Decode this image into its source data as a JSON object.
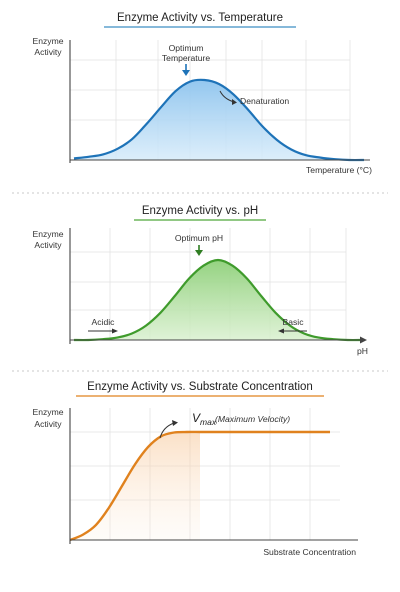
{
  "accent_colors": {
    "temperature": "#1e73b8",
    "ph": "#3f9b2c",
    "substrate": "#e0821e"
  },
  "chart_data": [
    {
      "id": "temperature",
      "type": "area",
      "title": "Enzyme Activity vs. Temperature",
      "xlabel": "Temperature (°C)",
      "ylabel_line1": "Enzyme",
      "ylabel_line2": "Activity",
      "grid": true,
      "xlim": [
        0,
        10
      ],
      "ylim": [
        0,
        1
      ],
      "x": [
        0,
        0.5,
        1,
        1.5,
        2,
        2.5,
        3,
        3.5,
        4,
        4.5,
        5,
        5.5,
        6,
        6.5,
        7,
        7.5,
        8,
        8.5,
        9,
        9.5,
        10
      ],
      "values": [
        0.02,
        0.04,
        0.07,
        0.14,
        0.26,
        0.45,
        0.66,
        0.86,
        0.98,
        1.0,
        0.95,
        0.82,
        0.63,
        0.42,
        0.25,
        0.13,
        0.06,
        0.03,
        0.01,
        0.0,
        0.0
      ],
      "annotations": {
        "peak_line1": "Optimum",
        "peak_line2": "Temperature",
        "right": "Denaturation"
      }
    },
    {
      "id": "ph",
      "type": "area",
      "title": "Enzyme Activity vs. pH",
      "xlabel": "pH",
      "ylabel_line1": "Enzyme",
      "ylabel_line2": "Activity",
      "grid": true,
      "xlim": [
        0,
        10
      ],
      "ylim": [
        0,
        1
      ],
      "x": [
        0,
        0.5,
        1,
        1.5,
        2,
        2.5,
        3,
        3.5,
        4,
        4.5,
        5,
        5.5,
        6,
        6.5,
        7,
        7.5,
        8,
        8.5,
        9,
        9.5,
        10
      ],
      "values": [
        0.0,
        0.0,
        0.01,
        0.03,
        0.08,
        0.18,
        0.34,
        0.55,
        0.77,
        0.93,
        1.0,
        0.93,
        0.77,
        0.55,
        0.34,
        0.18,
        0.08,
        0.03,
        0.01,
        0.0,
        0.0
      ],
      "annotations": {
        "peak": "Optimum pH",
        "left": "Acidic",
        "right": "Basic"
      }
    },
    {
      "id": "substrate",
      "type": "line",
      "title": "Enzyme Activity vs. Substrate Concentration",
      "xlabel": "Substrate Concentration",
      "ylabel_line1": "Enzyme",
      "ylabel_line2": "Activity",
      "grid": true,
      "xlim": [
        0,
        10
      ],
      "ylim": [
        0,
        1
      ],
      "x": [
        0,
        0.5,
        1,
        1.5,
        2,
        2.5,
        3,
        3.5,
        4,
        4.5,
        5,
        5.5,
        6,
        6.5,
        7,
        7.5,
        8,
        8.5,
        9,
        9.5,
        10
      ],
      "values": [
        0.0,
        0.05,
        0.14,
        0.3,
        0.5,
        0.7,
        0.86,
        0.96,
        0.995,
        1.0,
        1.0,
        1.0,
        1.0,
        1.0,
        1.0,
        1.0,
        1.0,
        1.0,
        1.0,
        1.0,
        1.0
      ],
      "annotations": {
        "vmax_symbol": "V",
        "vmax_subscript": "max",
        "vmax_text": "(Maximum Velocity)"
      }
    }
  ]
}
